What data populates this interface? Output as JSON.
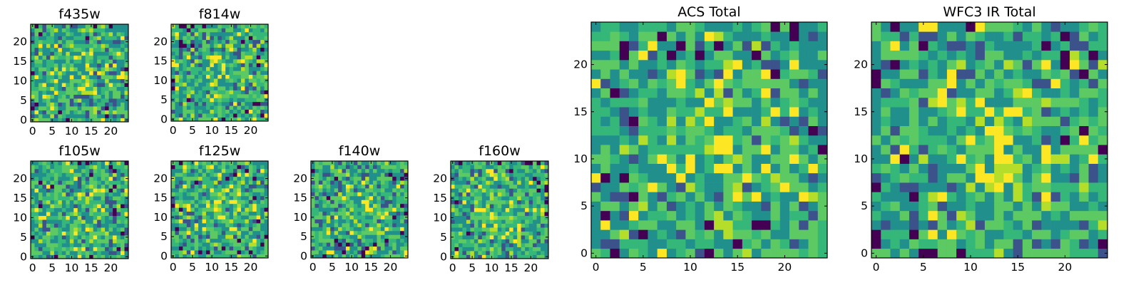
{
  "figure": {
    "colormap": [
      "#440154",
      "#3b528b",
      "#21908d",
      "#5dc963",
      "#fde725"
    ],
    "background": "#ffffff"
  },
  "chart_data": [
    {
      "type": "heatmap",
      "title": "f435w",
      "grid_size": [
        25,
        25
      ],
      "xlim": [
        0,
        24
      ],
      "ylim": [
        0,
        24
      ],
      "origin": "lower",
      "xticks": [
        "0",
        "5",
        "10",
        "15",
        "20"
      ],
      "yticks": [
        "0",
        "5",
        "10",
        "15",
        "20"
      ]
    },
    {
      "type": "heatmap",
      "title": "f814w",
      "grid_size": [
        25,
        25
      ],
      "xlim": [
        0,
        24
      ],
      "ylim": [
        0,
        24
      ],
      "origin": "lower",
      "xticks": [
        "0",
        "5",
        "10",
        "15",
        "20"
      ],
      "yticks": [
        "0",
        "5",
        "10",
        "15",
        "20"
      ]
    },
    {
      "type": "heatmap",
      "title": "f105w",
      "grid_size": [
        25,
        25
      ],
      "xlim": [
        0,
        24
      ],
      "ylim": [
        0,
        24
      ],
      "origin": "lower",
      "xticks": [
        "0",
        "5",
        "10",
        "15",
        "20"
      ],
      "yticks": [
        "0",
        "5",
        "10",
        "15",
        "20"
      ]
    },
    {
      "type": "heatmap",
      "title": "f125w",
      "grid_size": [
        25,
        25
      ],
      "xlim": [
        0,
        24
      ],
      "ylim": [
        0,
        24
      ],
      "origin": "lower",
      "xticks": [
        "0",
        "5",
        "10",
        "15",
        "20"
      ],
      "yticks": [
        "0",
        "5",
        "10",
        "15",
        "20"
      ]
    },
    {
      "type": "heatmap",
      "title": "f140w",
      "grid_size": [
        25,
        25
      ],
      "xlim": [
        0,
        24
      ],
      "ylim": [
        0,
        24
      ],
      "origin": "lower",
      "xticks": [
        "0",
        "5",
        "10",
        "15",
        "20"
      ],
      "yticks": [
        "0",
        "5",
        "10",
        "15",
        "20"
      ]
    },
    {
      "type": "heatmap",
      "title": "f160w",
      "grid_size": [
        25,
        25
      ],
      "xlim": [
        0,
        24
      ],
      "ylim": [
        0,
        24
      ],
      "origin": "lower",
      "xticks": [
        "0",
        "5",
        "10",
        "15",
        "20"
      ],
      "yticks": [
        "0",
        "5",
        "10",
        "15",
        "20"
      ]
    },
    {
      "type": "heatmap",
      "title": "ACS Total",
      "grid_size": [
        25,
        25
      ],
      "xlim": [
        0,
        24
      ],
      "ylim": [
        0,
        24
      ],
      "origin": "lower",
      "xticks": [
        "0",
        "5",
        "10",
        "15",
        "20"
      ],
      "yticks": [
        "0",
        "5",
        "10",
        "15",
        "20"
      ]
    },
    {
      "type": "heatmap",
      "title": "WFC3 IR Total",
      "grid_size": [
        25,
        25
      ],
      "xlim": [
        0,
        24
      ],
      "ylim": [
        0,
        24
      ],
      "origin": "lower",
      "xticks": [
        "0",
        "5",
        "10",
        "15",
        "20"
      ],
      "yticks": [
        "0",
        "5",
        "10",
        "15",
        "20"
      ]
    }
  ]
}
